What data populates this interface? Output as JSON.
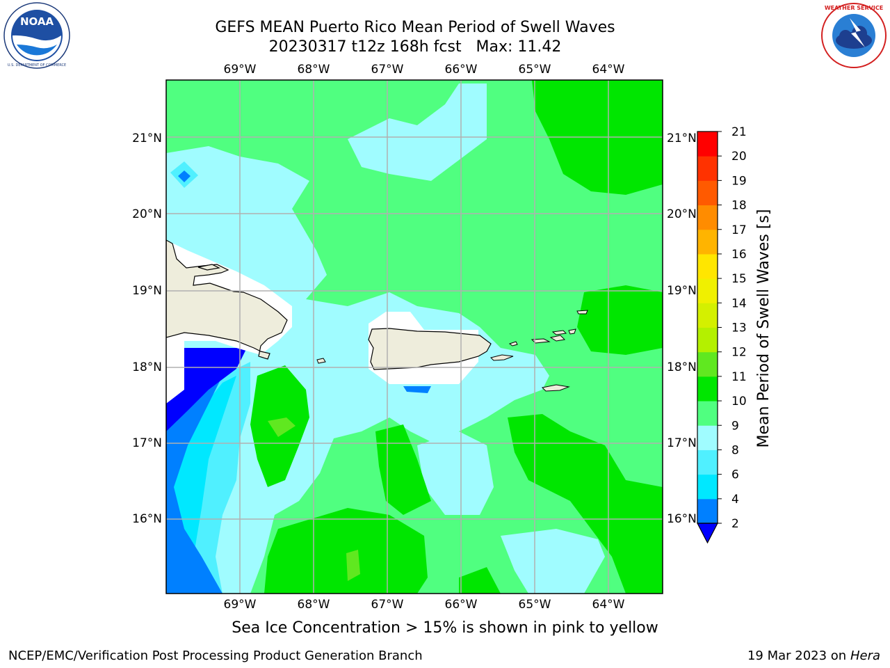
{
  "title": {
    "line1": "GEFS MEAN Puerto Rico Mean Period of Swell Waves",
    "line2": "20230317 t12z 168h fcst   Max: 11.42"
  },
  "logos": {
    "left": {
      "name": "noaa-logo",
      "text": "NOAA",
      "ring_text": "NATIONAL OCEANIC AND ATMOSPHERIC ADMINISTRATION · U.S. DEPARTMENT OF COMMERCE"
    },
    "right": {
      "name": "national-weather-service-logo",
      "ring_text": "NATIONAL WEATHER SERVICE"
    }
  },
  "map": {
    "lon_labels": [
      "69°W",
      "68°W",
      "67°W",
      "66°W",
      "65°W",
      "64°W"
    ],
    "lat_labels": [
      "21°N",
      "20°N",
      "19°N",
      "18°N",
      "17°N",
      "16°N"
    ],
    "lon_range": [
      -69.95,
      -63.25
    ],
    "lat_range": [
      15.0,
      21.75
    ],
    "land_color": "#eeeddc",
    "grid_color": "#b0b0b0",
    "islands": [
      "Hispaniola",
      "Puerto Rico",
      "Virgin Islands"
    ]
  },
  "colorbar": {
    "label": "Mean Period of Swell Waves [s]",
    "ticks": [
      "2",
      "4",
      "6",
      "8",
      "9",
      "10",
      "11",
      "12",
      "13",
      "14",
      "15",
      "16",
      "17",
      "18",
      "19",
      "20",
      "21"
    ],
    "bands": [
      {
        "from": 2,
        "to": 4,
        "color": "#0080ff"
      },
      {
        "from": 4,
        "to": 6,
        "color": "#00e8ff"
      },
      {
        "from": 6,
        "to": 8,
        "color": "#50f0ff"
      },
      {
        "from": 8,
        "to": 9,
        "color": "#a0fcff"
      },
      {
        "from": 9,
        "to": 10,
        "color": "#50ff80"
      },
      {
        "from": 10,
        "to": 11,
        "color": "#00e600"
      },
      {
        "from": 11,
        "to": 12,
        "color": "#60e820"
      },
      {
        "from": 12,
        "to": 13,
        "color": "#b4f000"
      },
      {
        "from": 13,
        "to": 14,
        "color": "#d4f000"
      },
      {
        "from": 14,
        "to": 15,
        "color": "#f0f000"
      },
      {
        "from": 15,
        "to": 16,
        "color": "#ffe600"
      },
      {
        "from": 16,
        "to": 17,
        "color": "#ffb400"
      },
      {
        "from": 17,
        "to": 18,
        "color": "#ff8c00"
      },
      {
        "from": 18,
        "to": 19,
        "color": "#ff5a00"
      },
      {
        "from": 19,
        "to": 20,
        "color": "#ff3200"
      },
      {
        "from": 20,
        "to": 21,
        "color": "#ff0000"
      }
    ],
    "under_color": "#0000ff"
  },
  "footer": {
    "caption": "Sea Ice Concentration > 15% is shown in pink to yellow",
    "left": "NCEP/EMC/Verification Post Processing Product Generation Branch",
    "right_date": "19 Mar 2023 on",
    "right_host": "Hera"
  }
}
